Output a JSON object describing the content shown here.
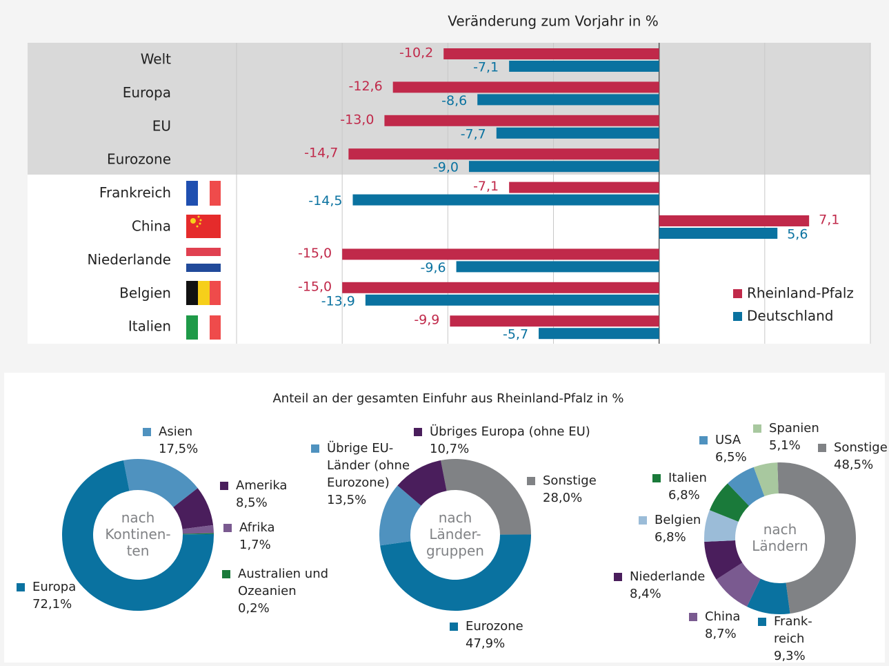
{
  "section_title": "Anteil an der gesamten Einfuhr aus Rheinland-Pfalz in %",
  "chart_data": [
    {
      "type": "bar",
      "orientation": "horizontal",
      "title": "Veränderung zum Vorjahr in %",
      "categories": [
        "Welt",
        "Europa",
        "EU",
        "Eurozone",
        "Frankreich",
        "China",
        "Niederlande",
        "Belgien",
        "Italien"
      ],
      "series": [
        {
          "name": "Rheinland-Pfalz",
          "color": "#c0294a",
          "values": [
            -10.2,
            -12.6,
            -13.0,
            -14.7,
            -7.1,
            7.1,
            -15.0,
            -15.0,
            -9.9
          ],
          "value_labels": [
            "-10,2",
            "-12,6",
            "-13,0",
            "-14,7",
            "-7,1",
            "7,1",
            "-15,0",
            "-15,0",
            "-9,9"
          ]
        },
        {
          "name": "Deutschland",
          "color": "#0a72a0",
          "values": [
            -7.1,
            -8.6,
            -7.7,
            -9.0,
            -14.5,
            5.6,
            -9.6,
            -13.9,
            -5.7
          ],
          "value_labels": [
            "-7,1",
            "-8,6",
            "-7,7",
            "-9,0",
            "-14,5",
            "5,6",
            "-9,6",
            "-13,9",
            "-5,7"
          ]
        }
      ],
      "xlim": [
        -20,
        10
      ],
      "xticks": [
        -20,
        -15,
        -10,
        -5,
        0,
        5,
        10
      ],
      "grid": true,
      "legend": "lower right"
    },
    {
      "type": "donut",
      "center_label": "nach\nKontinen-\nten",
      "labels": [
        "Asien",
        "Amerika",
        "Afrika",
        "Australien und\nOzeanien",
        "Europa"
      ],
      "values": [
        17.5,
        8.5,
        1.7,
        0.2,
        72.1
      ],
      "value_labels": [
        "17,5%",
        "8,5%",
        "1,7%",
        "0,2%",
        "72,1%"
      ],
      "colors": [
        "#4f92bf",
        "#4a1e5c",
        "#7a5a90",
        "#1a7a3a",
        "#0a72a0"
      ]
    },
    {
      "type": "donut",
      "center_label": "nach\nLänder-\ngruppen",
      "labels": [
        "Sonstige",
        "Eurozone",
        "Übrige EU-\nLänder (ohne\nEurozone)",
        "Übriges Europa (ohne EU)"
      ],
      "values": [
        28.0,
        47.9,
        13.5,
        10.7
      ],
      "value_labels": [
        "28,0%",
        "47,9%",
        "13,5%",
        "10,7%"
      ],
      "colors": [
        "#808285",
        "#0a72a0",
        "#4f92bf",
        "#4a1e5c"
      ]
    },
    {
      "type": "donut",
      "center_label": "nach\nLändern",
      "labels": [
        "Sonstige",
        "Frank-\nreich",
        "China",
        "Niederlande",
        "Belgien",
        "Italien",
        "USA",
        "Spanien"
      ],
      "values": [
        48.5,
        9.3,
        8.7,
        8.4,
        6.8,
        6.8,
        6.5,
        5.1
      ],
      "value_labels": [
        "48,5%",
        "9,3%",
        "8,7%",
        "8,4%",
        "6,8%",
        "6,8%",
        "6,5%",
        "5,1%"
      ],
      "colors": [
        "#808285",
        "#0a72a0",
        "#7a5a90",
        "#4a1e5c",
        "#9bbcd8",
        "#1a7a3a",
        "#4f92bf",
        "#a8c89f"
      ]
    }
  ]
}
